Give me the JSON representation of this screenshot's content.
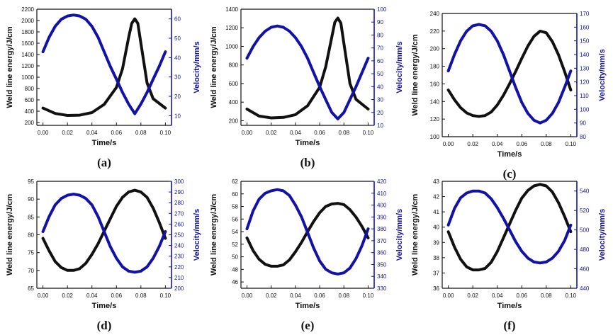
{
  "figure": {
    "left_color": "#111111",
    "right_color": "#1212a8"
  },
  "chart_data": [
    {
      "type": "line",
      "caption": "(a)",
      "xlabel": "Time/s",
      "ylabel": "Weld line energy/J/cm",
      "y2label": "Velocity/mm/s",
      "xlim": [
        -0.005,
        0.105
      ],
      "xticks": [
        0.0,
        0.02,
        0.04,
        0.06,
        0.08,
        0.1
      ],
      "ylim": [
        150,
        2200
      ],
      "yticks": [
        200,
        400,
        600,
        800,
        1000,
        1200,
        1400,
        1600,
        1800,
        2000,
        2200
      ],
      "y2lim": [
        5,
        65
      ],
      "y2ticks": [
        10,
        20,
        30,
        40,
        50,
        60
      ],
      "series": [
        {
          "axis": "left",
          "color": "#111111",
          "x": [
            0.0,
            0.01,
            0.02,
            0.03,
            0.04,
            0.05,
            0.06,
            0.065,
            0.07,
            0.0725,
            0.075,
            0.0775,
            0.08,
            0.085,
            0.09,
            0.1
          ],
          "y": [
            455,
            360,
            325,
            330,
            375,
            520,
            820,
            1150,
            1700,
            1950,
            2030,
            1950,
            1600,
            900,
            620,
            455
          ]
        },
        {
          "axis": "right",
          "color": "#1212a8",
          "x": [
            0.0,
            0.005,
            0.01,
            0.015,
            0.02,
            0.025,
            0.03,
            0.035,
            0.04,
            0.045,
            0.05,
            0.055,
            0.06,
            0.065,
            0.07,
            0.075,
            0.08,
            0.085,
            0.09,
            0.095,
            0.1
          ],
          "y": [
            43,
            50.5,
            56.2,
            59.8,
            61.5,
            62,
            61.5,
            59.8,
            56.2,
            50.5,
            43,
            35.5,
            28.8,
            22,
            16,
            11,
            16,
            22,
            28.8,
            35.5,
            43
          ]
        }
      ]
    },
    {
      "type": "line",
      "caption": "(b)",
      "xlabel": "Time/s",
      "ylabel": "Weld line energy/J/cm",
      "y2label": "Velocity/mm/s",
      "xlim": [
        -0.005,
        0.105
      ],
      "xticks": [
        0.0,
        0.02,
        0.04,
        0.06,
        0.08,
        0.1
      ],
      "ylim": [
        150,
        1400
      ],
      "yticks": [
        200,
        400,
        600,
        800,
        1000,
        1200,
        1400
      ],
      "y2lim": [
        10,
        100
      ],
      "y2ticks": [
        10,
        20,
        30,
        40,
        50,
        60,
        70,
        80,
        90,
        100
      ],
      "series": [
        {
          "axis": "left",
          "color": "#111111",
          "x": [
            0.0,
            0.01,
            0.02,
            0.03,
            0.04,
            0.05,
            0.06,
            0.065,
            0.07,
            0.0725,
            0.075,
            0.0775,
            0.08,
            0.085,
            0.09,
            0.1
          ],
          "y": [
            325,
            250,
            230,
            235,
            265,
            360,
            560,
            780,
            1100,
            1260,
            1305,
            1250,
            1030,
            600,
            430,
            325
          ]
        },
        {
          "axis": "right",
          "color": "#1212a8",
          "x": [
            0.0,
            0.005,
            0.01,
            0.015,
            0.02,
            0.025,
            0.03,
            0.035,
            0.04,
            0.045,
            0.05,
            0.055,
            0.06,
            0.065,
            0.07,
            0.075,
            0.08,
            0.085,
            0.09,
            0.095,
            0.1
          ],
          "y": [
            62,
            71,
            78,
            83,
            86,
            87,
            86,
            83,
            78,
            71,
            62,
            51,
            40,
            30,
            20,
            15,
            20,
            30,
            40,
            51,
            62
          ]
        }
      ]
    },
    {
      "type": "line",
      "caption": "(c)",
      "xlabel": "Time/s",
      "ylabel": "Weld line energy/J/cm",
      "y2label": "Velocity/mm/s",
      "xlim": [
        -0.005,
        0.105
      ],
      "xticks": [
        0.0,
        0.02,
        0.04,
        0.06,
        0.08,
        0.1
      ],
      "ylim": [
        100,
        240
      ],
      "yticks": [
        100,
        120,
        140,
        160,
        180,
        200,
        220,
        240
      ],
      "y2lim": [
        80,
        170
      ],
      "y2ticks": [
        80,
        90,
        100,
        110,
        120,
        130,
        140,
        150,
        160,
        170
      ],
      "series": [
        {
          "axis": "left",
          "color": "#111111",
          "x": [
            0.0,
            0.005,
            0.01,
            0.015,
            0.02,
            0.025,
            0.03,
            0.035,
            0.04,
            0.045,
            0.05,
            0.055,
            0.06,
            0.065,
            0.07,
            0.075,
            0.08,
            0.085,
            0.09,
            0.095,
            0.1
          ],
          "y": [
            153,
            142,
            133,
            127,
            124,
            123,
            124,
            128,
            136,
            147,
            160,
            174,
            189,
            203,
            214,
            220,
            218,
            208,
            193,
            174,
            153
          ]
        },
        {
          "axis": "right",
          "color": "#1212a8",
          "x": [
            0.0,
            0.005,
            0.01,
            0.015,
            0.02,
            0.025,
            0.03,
            0.035,
            0.04,
            0.045,
            0.05,
            0.055,
            0.06,
            0.065,
            0.07,
            0.075,
            0.08,
            0.085,
            0.09,
            0.095,
            0.1
          ],
          "y": [
            128,
            140,
            150,
            157,
            161,
            162,
            161,
            157,
            150,
            140,
            128,
            116,
            105,
            97,
            92,
            90,
            92,
            97,
            105,
            116,
            128
          ]
        }
      ]
    },
    {
      "type": "line",
      "caption": "(d)",
      "xlabel": "Time/s",
      "ylabel": "Weld line energy/J/cm",
      "y2label": "Velocity/mm/s",
      "xlim": [
        -0.005,
        0.105
      ],
      "xticks": [
        0.0,
        0.02,
        0.04,
        0.06,
        0.08,
        0.1
      ],
      "ylim": [
        65,
        95
      ],
      "yticks": [
        65,
        70,
        75,
        80,
        85,
        90,
        95
      ],
      "y2lim": [
        200,
        300
      ],
      "y2ticks": [
        200,
        210,
        220,
        230,
        240,
        250,
        260,
        270,
        280,
        290,
        300
      ],
      "series": [
        {
          "axis": "left",
          "color": "#111111",
          "x": [
            0.0,
            0.005,
            0.01,
            0.015,
            0.02,
            0.025,
            0.03,
            0.035,
            0.04,
            0.045,
            0.05,
            0.055,
            0.06,
            0.065,
            0.07,
            0.075,
            0.08,
            0.085,
            0.09,
            0.095,
            0.1
          ],
          "y": [
            79,
            75.5,
            72.5,
            70.8,
            70,
            70,
            70.5,
            72,
            74.5,
            77.5,
            81,
            84.5,
            88,
            90.5,
            92,
            92.5,
            92,
            90.5,
            87.5,
            83.5,
            79
          ]
        },
        {
          "axis": "right",
          "color": "#1212a8",
          "x": [
            0.0,
            0.005,
            0.01,
            0.015,
            0.02,
            0.025,
            0.03,
            0.035,
            0.04,
            0.045,
            0.05,
            0.055,
            0.06,
            0.065,
            0.07,
            0.075,
            0.08,
            0.085,
            0.09,
            0.095,
            0.1
          ],
          "y": [
            253,
            267,
            278,
            284,
            287,
            288,
            287,
            284,
            278,
            267,
            253,
            239,
            228,
            220,
            216,
            215,
            216,
            220,
            228,
            239,
            253
          ]
        }
      ]
    },
    {
      "type": "line",
      "caption": "(e)",
      "xlabel": "Time/s",
      "ylabel": "Weld line energy/J/cm",
      "y2label": "Velocity/mm/s",
      "xlim": [
        -0.005,
        0.105
      ],
      "xticks": [
        0.0,
        0.02,
        0.04,
        0.06,
        0.08,
        0.1
      ],
      "ylim": [
        45,
        62
      ],
      "yticks": [
        46,
        48,
        50,
        52,
        54,
        56,
        58,
        60,
        62
      ],
      "y2lim": [
        330,
        420
      ],
      "y2ticks": [
        330,
        340,
        350,
        360,
        370,
        380,
        390,
        400,
        410,
        420
      ],
      "series": [
        {
          "axis": "left",
          "color": "#111111",
          "x": [
            0.0,
            0.005,
            0.01,
            0.015,
            0.02,
            0.025,
            0.03,
            0.035,
            0.04,
            0.045,
            0.05,
            0.055,
            0.06,
            0.065,
            0.07,
            0.075,
            0.08,
            0.085,
            0.09,
            0.095,
            0.1
          ],
          "y": [
            53,
            51,
            49.6,
            48.8,
            48.5,
            48.5,
            48.7,
            49.5,
            50.8,
            52.3,
            54,
            55.6,
            57,
            58,
            58.4,
            58.5,
            58.3,
            57.5,
            56.3,
            54.8,
            53
          ]
        },
        {
          "axis": "right",
          "color": "#1212a8",
          "x": [
            0.0,
            0.005,
            0.01,
            0.015,
            0.02,
            0.025,
            0.03,
            0.035,
            0.04,
            0.045,
            0.05,
            0.055,
            0.06,
            0.065,
            0.07,
            0.075,
            0.08,
            0.085,
            0.09,
            0.095,
            0.1
          ],
          "y": [
            380,
            395,
            405,
            410,
            412,
            413,
            412,
            408,
            400,
            390,
            377,
            364,
            353,
            346,
            343,
            342,
            343,
            347,
            355,
            366,
            380
          ]
        }
      ]
    },
    {
      "type": "line",
      "caption": "(f)",
      "xlabel": "Time/s",
      "ylabel": "Weld line energy/J/cm",
      "y2label": "Velocity/mm/s",
      "xlim": [
        -0.005,
        0.105
      ],
      "xticks": [
        0.0,
        0.02,
        0.04,
        0.06,
        0.08,
        0.1
      ],
      "ylim": [
        36,
        43
      ],
      "yticks": [
        36,
        37,
        38,
        39,
        40,
        41,
        42,
        43
      ],
      "y2lim": [
        440,
        550
      ],
      "y2ticks": [
        440,
        460,
        480,
        500,
        520,
        540
      ],
      "series": [
        {
          "axis": "left",
          "color": "#111111",
          "x": [
            0.0,
            0.005,
            0.01,
            0.015,
            0.02,
            0.025,
            0.03,
            0.035,
            0.04,
            0.045,
            0.05,
            0.055,
            0.06,
            0.065,
            0.07,
            0.075,
            0.08,
            0.085,
            0.09,
            0.095,
            0.1
          ],
          "y": [
            39.7,
            38.7,
            37.9,
            37.4,
            37.2,
            37.2,
            37.3,
            37.7,
            38.4,
            39.3,
            40.2,
            41.1,
            41.9,
            42.4,
            42.7,
            42.8,
            42.7,
            42.3,
            41.6,
            40.7,
            39.7
          ]
        },
        {
          "axis": "right",
          "color": "#1212a8",
          "x": [
            0.0,
            0.005,
            0.01,
            0.015,
            0.02,
            0.025,
            0.03,
            0.035,
            0.04,
            0.045,
            0.05,
            0.055,
            0.06,
            0.065,
            0.07,
            0.075,
            0.08,
            0.085,
            0.09,
            0.095,
            0.1
          ],
          "y": [
            505,
            522,
            533,
            538,
            540,
            540,
            538,
            532,
            523,
            512,
            500,
            488,
            478,
            471,
            467,
            466,
            467,
            471,
            478,
            489,
            505
          ]
        }
      ]
    }
  ]
}
